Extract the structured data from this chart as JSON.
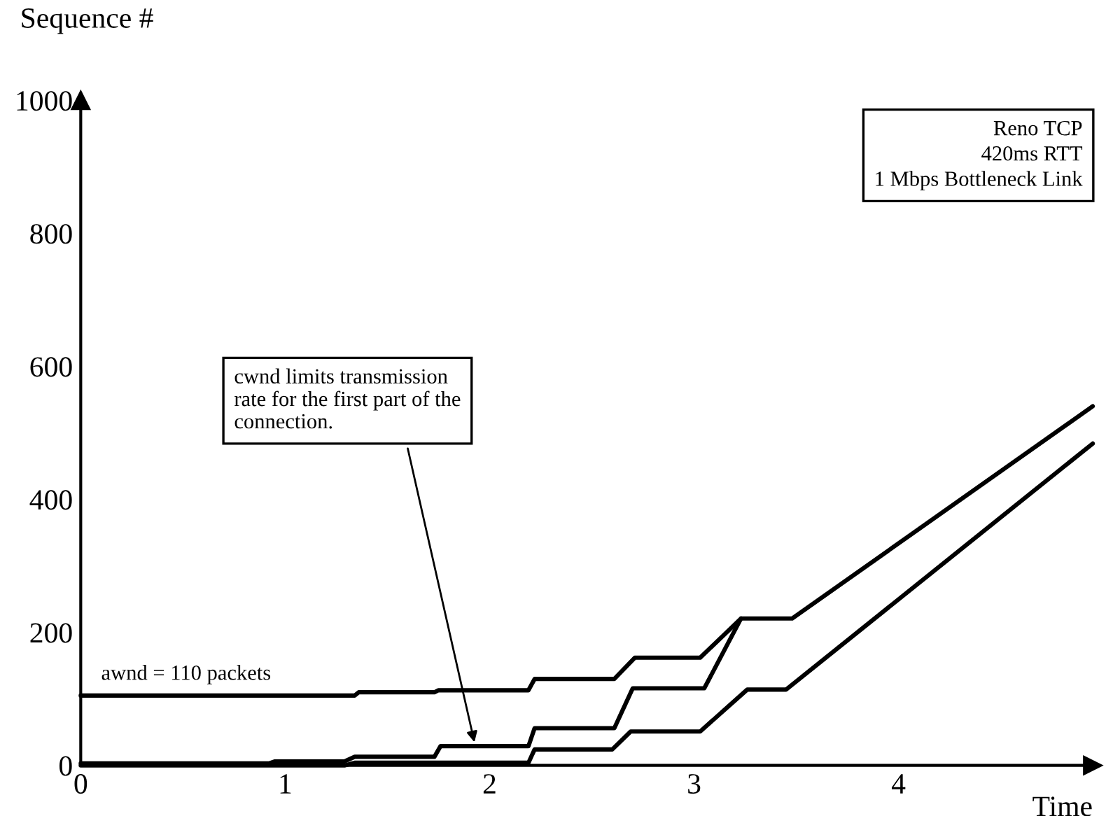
{
  "chart_data": {
    "type": "line",
    "xlabel": "Time",
    "ylabel": "Sequence #",
    "xlim": [
      0,
      4.95
    ],
    "ylim": [
      0,
      1000
    ],
    "xticks": [
      0,
      1,
      2,
      3,
      4
    ],
    "yticks": [
      0,
      200,
      400,
      600,
      800,
      1000
    ],
    "grid": false,
    "legend": false,
    "marker": "none",
    "line_style": "solid",
    "series": [
      {
        "color": "#000000",
        "x": [
          0,
          1.34,
          1.36,
          1.73,
          1.75,
          2.19,
          2.22,
          2.61,
          2.71,
          3.03,
          3.23,
          3.48,
          4.95
        ],
        "values": [
          105,
          105,
          110,
          110,
          113,
          113,
          130,
          130,
          162,
          162,
          221,
          221,
          540
        ]
      },
      {
        "color": "#000000",
        "x": [
          0,
          0.92,
          0.95,
          1.29,
          1.34,
          1.73,
          1.76,
          2.19,
          2.22,
          2.61,
          2.7,
          3.05,
          3.23
        ],
        "values": [
          3,
          3,
          6,
          6,
          13,
          13,
          29,
          29,
          56,
          56,
          116,
          116,
          221
        ]
      },
      {
        "color": "#000000",
        "x": [
          0,
          1.29,
          1.34,
          2.19,
          2.22,
          2.6,
          2.69,
          3.03,
          3.26,
          3.45,
          4.95
        ],
        "values": [
          0,
          0,
          4,
          4,
          24,
          24,
          51,
          51,
          114,
          114,
          484
        ]
      }
    ],
    "annotations": [
      {
        "text": "awnd = 110 packets",
        "x": 0.1,
        "y": 110
      },
      {
        "text": "cwnd limits transmission\nrate for the first part of the\nconnection.",
        "x": 1.93,
        "y": 29
      },
      "Reno TCP\n420ms RTT\n1 Mbps Bottleneck Link"
    ]
  }
}
